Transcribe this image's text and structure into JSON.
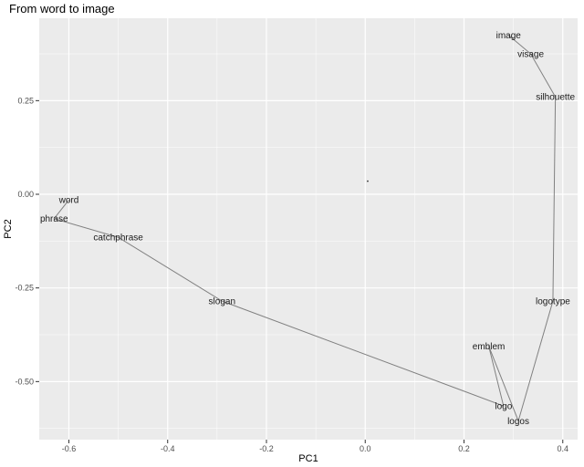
{
  "chart_data": {
    "type": "scatter",
    "title": "From word to image",
    "xlabel": "PC1",
    "ylabel": "PC2",
    "xlim": [
      -0.66,
      0.43
    ],
    "ylim": [
      -0.655,
      0.47
    ],
    "x_ticks": [
      -0.6,
      -0.4,
      -0.2,
      0.0,
      0.2,
      0.4
    ],
    "x_tick_labels": [
      "-0.6",
      "-0.4",
      "-0.2",
      "0.0",
      "0.2",
      "0.4"
    ],
    "y_ticks": [
      0.25,
      0.0,
      -0.25,
      -0.5
    ],
    "y_tick_labels": [
      "0.25",
      "0.00",
      "-0.25",
      "-0.50"
    ],
    "grid": true,
    "legend": "none",
    "colors": {
      "panel": "#ebebeb",
      "grid_major": "#ffffff",
      "path": "#808080"
    },
    "points": [
      {
        "label": "word",
        "x": -0.6,
        "y": -0.015
      },
      {
        "label": "phrase",
        "x": -0.63,
        "y": -0.065
      },
      {
        "label": "catchphrase",
        "x": -0.5,
        "y": -0.115
      },
      {
        "label": "slogan",
        "x": -0.29,
        "y": -0.285
      },
      {
        "label": "logo",
        "x": 0.28,
        "y": -0.565
      },
      {
        "label": "emblem",
        "x": 0.25,
        "y": -0.405
      },
      {
        "label": "logos",
        "x": 0.31,
        "y": -0.605
      },
      {
        "label": "logotype",
        "x": 0.38,
        "y": -0.285
      },
      {
        "label": "silhouette",
        "x": 0.385,
        "y": 0.26
      },
      {
        "label": "visage",
        "x": 0.335,
        "y": 0.375
      },
      {
        "label": "image",
        "x": 0.29,
        "y": 0.425
      }
    ],
    "path_order": [
      "word",
      "phrase",
      "catchphrase",
      "slogan",
      "logo",
      "emblem",
      "logos",
      "logotype",
      "silhouette",
      "visage",
      "image"
    ],
    "marker": {
      "x": 0.005,
      "y": 0.035
    }
  }
}
